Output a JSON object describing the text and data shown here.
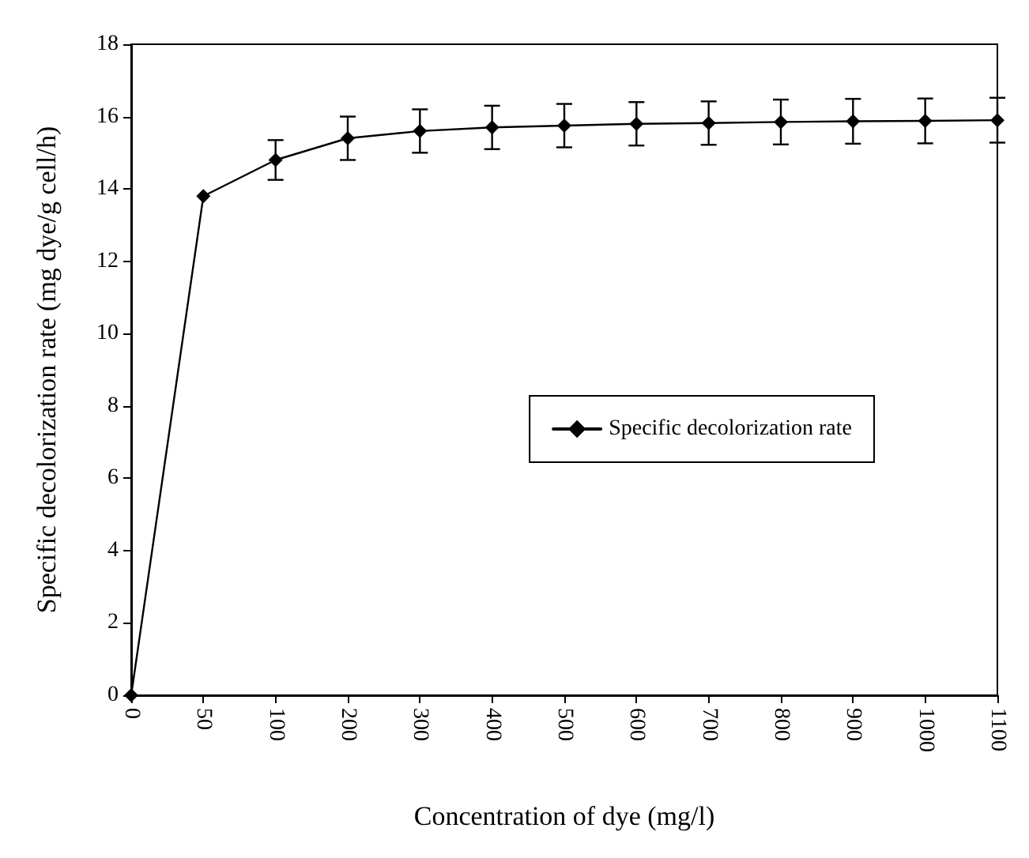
{
  "chart_data": {
    "type": "line",
    "xlabel": "Concentration of dye (mg/l)",
    "ylabel": "Specific decolorization rate (mg dye/g cell/h)",
    "categories": [
      "0",
      "50",
      "100",
      "200",
      "300",
      "400",
      "500",
      "600",
      "700",
      "800",
      "900",
      "1000",
      "1100"
    ],
    "series": [
      {
        "name": "Specific decolorization rate",
        "color": "#000000",
        "values": [
          0,
          13.8,
          14.8,
          15.4,
          15.6,
          15.7,
          15.75,
          15.8,
          15.82,
          15.85,
          15.87,
          15.88,
          15.9
        ],
        "errors": [
          null,
          null,
          0.55,
          0.6,
          0.6,
          0.6,
          0.6,
          0.6,
          0.6,
          0.62,
          0.62,
          0.62,
          0.62
        ]
      }
    ],
    "ylim": [
      0,
      18
    ],
    "yticks": [
      0,
      2,
      4,
      6,
      8,
      10,
      12,
      14,
      16,
      18
    ],
    "grid": false,
    "legend": "right",
    "marker": "diamond",
    "line_style": "solid"
  }
}
